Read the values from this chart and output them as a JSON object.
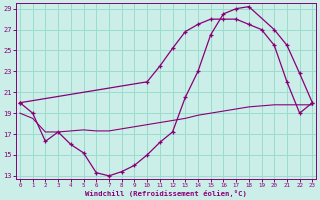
{
  "xlabel": "Windchill (Refroidissement éolien,°C)",
  "bg_color": "#cceee8",
  "grid_color": "#99ddcc",
  "line_color": "#880077",
  "xmin": 0,
  "xmax": 23,
  "ymin": 13,
  "ymax": 29,
  "yticks": [
    13,
    15,
    17,
    19,
    21,
    23,
    25,
    27,
    29
  ],
  "xticks": [
    0,
    1,
    2,
    3,
    4,
    5,
    6,
    7,
    8,
    9,
    10,
    11,
    12,
    13,
    14,
    15,
    16,
    17,
    18,
    19,
    20,
    21,
    22,
    23
  ],
  "curve_valley_x": [
    0,
    1,
    2,
    3,
    4,
    5,
    6,
    7,
    8,
    9,
    10,
    11,
    12,
    13,
    14,
    15,
    16,
    17,
    18,
    20,
    21,
    22,
    23
  ],
  "curve_valley_y": [
    20.0,
    19.0,
    16.3,
    17.2,
    16.0,
    15.2,
    13.3,
    13.0,
    13.4,
    14.0,
    15.0,
    16.2,
    17.2,
    20.5,
    23.0,
    26.5,
    28.5,
    29.0,
    29.2,
    27.0,
    25.5,
    22.8,
    20.0
  ],
  "curve_upper_x": [
    0,
    10,
    11,
    12,
    13,
    14,
    15,
    16,
    17,
    18,
    19,
    20,
    21,
    22,
    23
  ],
  "curve_upper_y": [
    20.0,
    22.0,
    23.5,
    25.2,
    26.8,
    27.5,
    28.0,
    28.0,
    28.0,
    27.5,
    27.0,
    25.5,
    22.0,
    19.0,
    20.0
  ],
  "curve_flat_x": [
    0,
    1,
    2,
    3,
    4,
    5,
    6,
    7,
    8,
    9,
    10,
    11,
    12,
    13,
    14,
    15,
    16,
    17,
    18,
    19,
    20,
    21,
    22,
    23
  ],
  "curve_flat_y": [
    19.0,
    18.5,
    17.2,
    17.2,
    17.3,
    17.4,
    17.3,
    17.3,
    17.5,
    17.7,
    17.9,
    18.1,
    18.3,
    18.5,
    18.8,
    19.0,
    19.2,
    19.4,
    19.6,
    19.7,
    19.8,
    19.8,
    19.8,
    19.8
  ]
}
